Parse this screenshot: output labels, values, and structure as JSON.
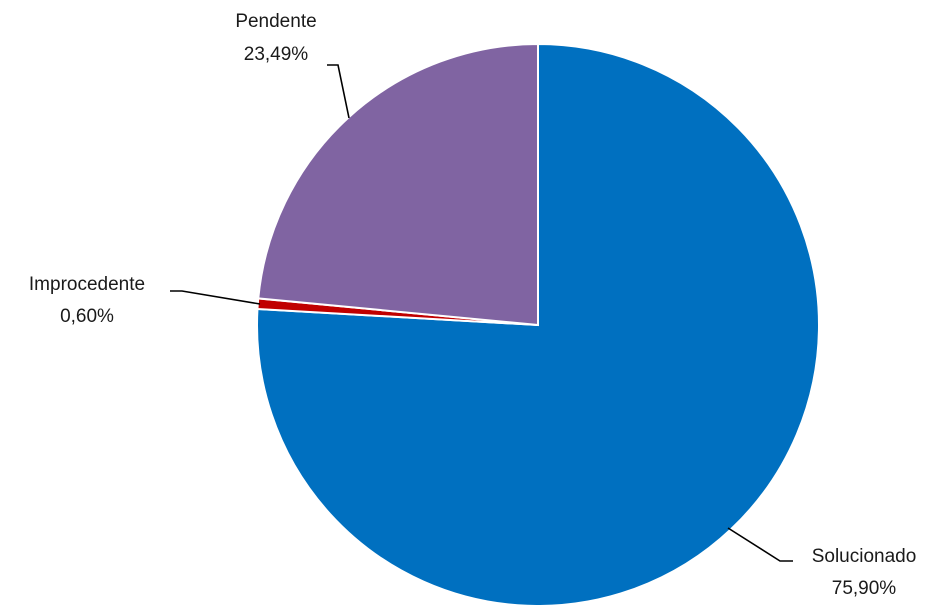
{
  "chart_data": {
    "type": "pie",
    "start_angle_deg": 0,
    "direction": "clockwise",
    "slices": [
      {
        "label": "Solucionado",
        "value": 75.9,
        "value_label": "75,90%",
        "color": "#0070C0"
      },
      {
        "label": "Improcedente",
        "value": 0.6,
        "value_label": "0,60%",
        "color": "#C00000"
      },
      {
        "label": "Pendente",
        "value": 23.49,
        "value_label": "23,49%",
        "color": "#8064A2"
      }
    ],
    "legend": "none"
  }
}
